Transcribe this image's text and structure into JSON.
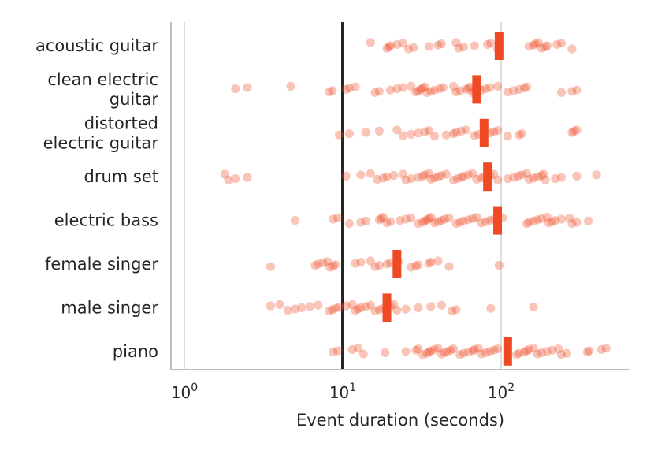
{
  "chart_data": {
    "type": "scatter",
    "subtype": "strip plot with median markers",
    "x_scale": "log",
    "xlabel": "Event duration (seconds)",
    "xlim": [
      0.8,
      630
    ],
    "x_ticks": [
      {
        "value": 1,
        "base": "10",
        "exp": "0"
      },
      {
        "value": 10,
        "base": "10",
        "exp": "1"
      },
      {
        "value": 100,
        "base": "10",
        "exp": "2"
      }
    ],
    "reference_line_x": 10,
    "grid": "vertical at major ticks",
    "colors": {
      "points": "#F04A24",
      "median": "#F04A24",
      "reference": "#262626",
      "grid": "#d6d6d6",
      "spine": "#bdbdbd"
    },
    "categories": [
      {
        "label_lines": [
          "acoustic guitar"
        ],
        "median": 97,
        "points": [
          15,
          19,
          19.5,
          20,
          22,
          24,
          26,
          28,
          35,
          40,
          42,
          52,
          54,
          58,
          68,
          82,
          86,
          95,
          98,
          150,
          160,
          165,
          172,
          180,
          190,
          195,
          225,
          240,
          280
        ]
      },
      {
        "label_lines": [
          "clean electric",
          "guitar"
        ],
        "median": 70,
        "points": [
          2.1,
          2.5,
          4.7,
          8.2,
          8.6,
          10.5,
          11,
          12,
          16,
          17,
          20,
          22,
          24,
          27,
          29,
          30,
          31,
          32,
          33,
          34,
          36,
          38,
          41,
          43,
          50,
          52,
          55,
          60,
          62,
          64,
          66,
          68,
          75,
          80,
          85,
          95,
          110,
          120,
          130,
          140,
          145,
          240,
          280,
          300
        ]
      },
      {
        "label_lines": [
          "distorted",
          "electric guitar"
        ],
        "median": 78,
        "points": [
          9.5,
          11,
          14,
          17,
          22,
          24,
          27,
          30,
          33,
          35,
          38,
          45,
          50,
          52,
          56,
          60,
          68,
          72,
          85,
          90,
          95,
          110,
          130,
          135,
          280,
          290,
          300
        ]
      },
      {
        "label_lines": [
          "drum set"
        ],
        "median": 82,
        "points": [
          1.8,
          1.9,
          2.1,
          2.5,
          10.5,
          13,
          15,
          16.5,
          18,
          19,
          21,
          24,
          25,
          27,
          30,
          32,
          33,
          35,
          36,
          38,
          40,
          42,
          45,
          50,
          53,
          56,
          58,
          62,
          66,
          70,
          75,
          78,
          85,
          90,
          95,
          110,
          120,
          128,
          135,
          145,
          150,
          160,
          170,
          180,
          185,
          190,
          220,
          240,
          300,
          400
        ]
      },
      {
        "label_lines": [
          "electric bass"
        ],
        "median": 95,
        "points": [
          5,
          8.7,
          9.3,
          11,
          13,
          14,
          17,
          17.5,
          18,
          19,
          20,
          23,
          25,
          27,
          30,
          32,
          33,
          34,
          35,
          36,
          38,
          40,
          42,
          44,
          47,
          52,
          55,
          58,
          62,
          66,
          70,
          75,
          80,
          85,
          90,
          102,
          145,
          150,
          160,
          170,
          180,
          195,
          200,
          210,
          220,
          240,
          270,
          280,
          300,
          355
        ]
      },
      {
        "label_lines": [
          "female singer"
        ],
        "median": 22,
        "points": [
          3.5,
          6.7,
          7,
          7.5,
          8,
          8.3,
          8.7,
          9,
          12,
          13,
          15,
          16,
          17,
          19,
          20,
          22.5,
          27,
          29,
          30,
          35,
          36,
          40,
          47,
          97
        ]
      },
      {
        "label_lines": [
          "male singer"
        ],
        "median": 19,
        "points": [
          3.5,
          4,
          4.5,
          5,
          5.5,
          6.2,
          7,
          8.2,
          8.6,
          9,
          9.5,
          10.5,
          11.5,
          12,
          12.5,
          13,
          14,
          15,
          16,
          17,
          18,
          19,
          20,
          21,
          22,
          25,
          30,
          36,
          42,
          49,
          52,
          86,
          160
        ]
      },
      {
        "label_lines": [
          "piano"
        ],
        "median": 110,
        "points": [
          8.7,
          9.3,
          11.5,
          12.5,
          13.5,
          18.5,
          25,
          29,
          30,
          32,
          34,
          35,
          36,
          38,
          40,
          42,
          44,
          46,
          48,
          50,
          55,
          58,
          62,
          66,
          68,
          72,
          75,
          80,
          85,
          90,
          95,
          125,
          130,
          140,
          145,
          150,
          160,
          170,
          180,
          195,
          210,
          230,
          240,
          260,
          350,
          360,
          430,
          460
        ]
      }
    ]
  }
}
